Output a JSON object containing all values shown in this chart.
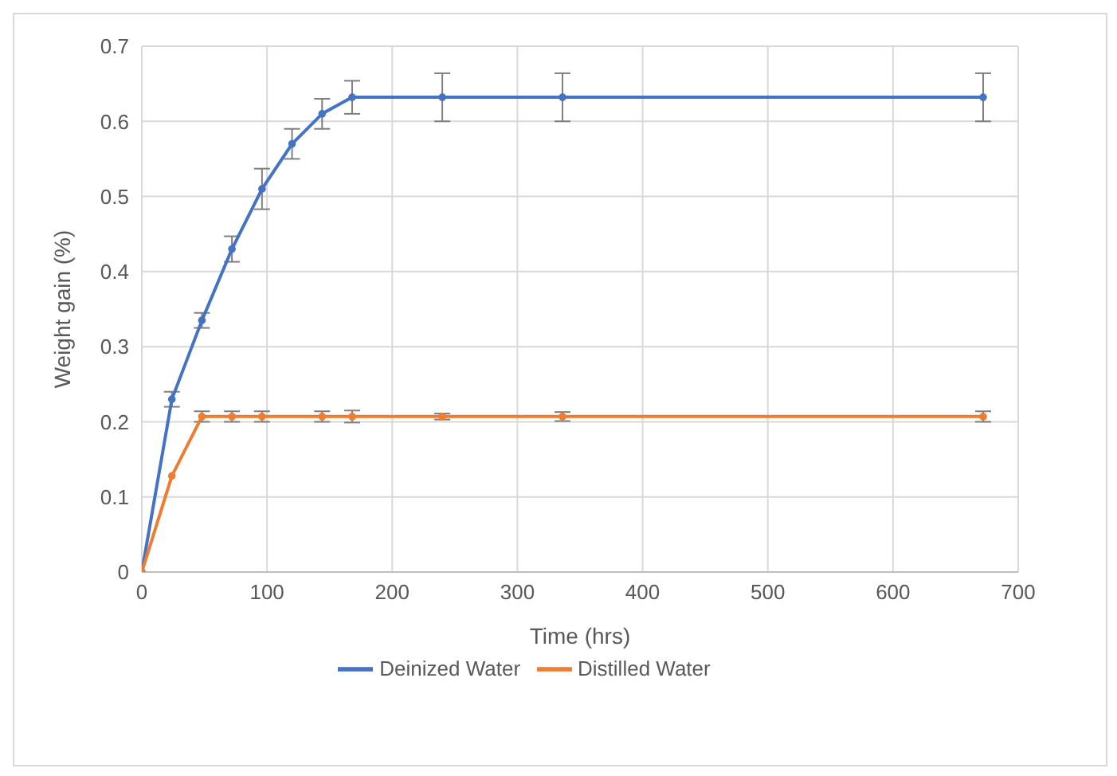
{
  "chart_data": {
    "type": "line",
    "xlabel": "Time (hrs)",
    "ylabel": "Weight gain (%)",
    "xlim": [
      0,
      700
    ],
    "xticks": [
      0,
      100,
      200,
      300,
      400,
      500,
      600,
      700
    ],
    "ylim": [
      0,
      0.7
    ],
    "yticks": [
      0,
      0.1,
      0.2,
      0.3,
      0.4,
      0.5,
      0.6,
      0.7
    ],
    "grid": true,
    "legend": "bottom",
    "marker": "circle",
    "series": [
      {
        "name": "Deinized Water",
        "color": "#4472c4",
        "x": [
          0,
          24,
          48,
          72,
          96,
          120,
          144,
          168,
          240,
          336,
          672
        ],
        "values": [
          0,
          0.23,
          0.335,
          0.43,
          0.51,
          0.57,
          0.61,
          0.632,
          0.632,
          0.632,
          0.632
        ],
        "errors": [
          null,
          0.01,
          0.01,
          0.017,
          0.027,
          0.02,
          0.02,
          0.022,
          0.032,
          0.032,
          0.032
        ]
      },
      {
        "name": "Distilled Water",
        "color": "#ed7d31",
        "x": [
          0,
          24,
          48,
          72,
          96,
          144,
          168,
          240,
          336,
          672
        ],
        "values": [
          0,
          0.128,
          0.207,
          0.207,
          0.207,
          0.207,
          0.207,
          0.207,
          0.207,
          0.207
        ],
        "errors": [
          null,
          null,
          0.007,
          0.007,
          0.007,
          0.007,
          0.008,
          0.004,
          0.006,
          0.007
        ]
      }
    ]
  }
}
